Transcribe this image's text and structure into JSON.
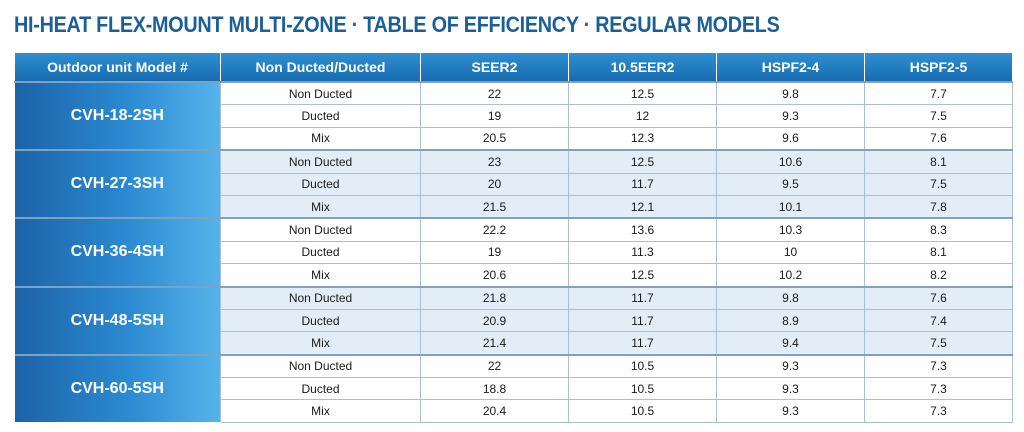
{
  "title": "HI-HEAT  FLEX-MOUNT MULTI-ZONE · TABLE OF EFFICIENCY · REGULAR MODELS",
  "headers": {
    "model": "Outdoor unit Model #",
    "duct": "Non Ducted/Ducted",
    "seer2": "SEER2",
    "eer2": "10.5EER2",
    "hspf4": "HSPF2-4",
    "hspf5": "HSPF2-5"
  },
  "groups": [
    {
      "model": "CVH-18-2SH",
      "rows": [
        {
          "duct": "Non Ducted",
          "seer2": "22",
          "eer2": "12.5",
          "hspf4": "9.8",
          "hspf5": "7.7"
        },
        {
          "duct": "Ducted",
          "seer2": "19",
          "eer2": "12",
          "hspf4": "9.3",
          "hspf5": "7.5"
        },
        {
          "duct": "Mix",
          "seer2": "20.5",
          "eer2": "12.3",
          "hspf4": "9.6",
          "hspf5": "7.6"
        }
      ]
    },
    {
      "model": "CVH-27-3SH",
      "rows": [
        {
          "duct": "Non Ducted",
          "seer2": "23",
          "eer2": "12.5",
          "hspf4": "10.6",
          "hspf5": "8.1"
        },
        {
          "duct": "Ducted",
          "seer2": "20",
          "eer2": "11.7",
          "hspf4": "9.5",
          "hspf5": "7.5"
        },
        {
          "duct": "Mix",
          "seer2": "21.5",
          "eer2": "12.1",
          "hspf4": "10.1",
          "hspf5": "7.8"
        }
      ]
    },
    {
      "model": "CVH-36-4SH",
      "rows": [
        {
          "duct": "Non Ducted",
          "seer2": "22.2",
          "eer2": "13.6",
          "hspf4": "10.3",
          "hspf5": "8.3"
        },
        {
          "duct": "Ducted",
          "seer2": "19",
          "eer2": "11.3",
          "hspf4": "10",
          "hspf5": "8.1"
        },
        {
          "duct": "Mix",
          "seer2": "20.6",
          "eer2": "12.5",
          "hspf4": "10.2",
          "hspf5": "8.2"
        }
      ]
    },
    {
      "model": "CVH-48-5SH",
      "rows": [
        {
          "duct": "Non Ducted",
          "seer2": "21.8",
          "eer2": "11.7",
          "hspf4": "9.8",
          "hspf5": "7.6"
        },
        {
          "duct": "Ducted",
          "seer2": "20.9",
          "eer2": "11.7",
          "hspf4": "8.9",
          "hspf5": "7.4"
        },
        {
          "duct": "Mix",
          "seer2": "21.4",
          "eer2": "11.7",
          "hspf4": "9.4",
          "hspf5": "7.5"
        }
      ]
    },
    {
      "model": "CVH-60-5SH",
      "rows": [
        {
          "duct": "Non Ducted",
          "seer2": "22",
          "eer2": "10.5",
          "hspf4": "9.3",
          "hspf5": "7.3"
        },
        {
          "duct": "Ducted",
          "seer2": "18.8",
          "eer2": "10.5",
          "hspf4": "9.3",
          "hspf5": "7.3"
        },
        {
          "duct": "Mix",
          "seer2": "20.4",
          "eer2": "10.5",
          "hspf4": "9.3",
          "hspf5": "7.3"
        }
      ]
    }
  ]
}
